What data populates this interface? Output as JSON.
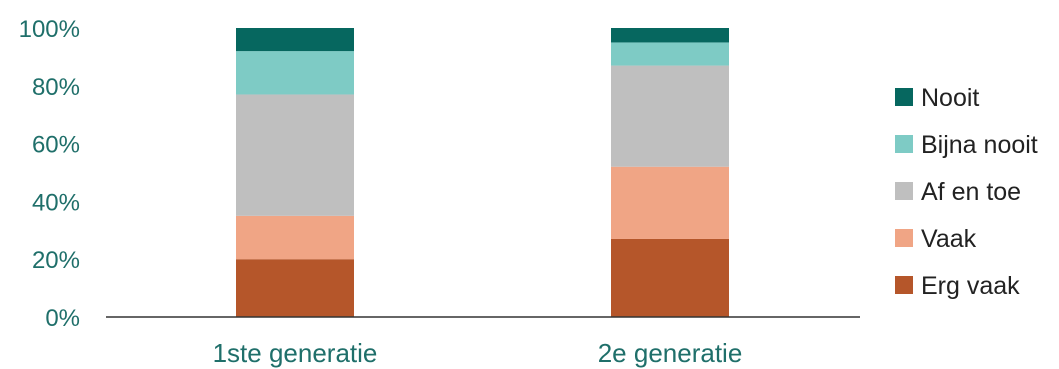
{
  "chart_data": {
    "type": "bar",
    "stacked": true,
    "categories": [
      "1ste generatie",
      "2e generatie"
    ],
    "series": [
      {
        "name": "Erg vaak",
        "values": [
          20,
          27
        ],
        "color": "#b5562a"
      },
      {
        "name": "Vaak",
        "values": [
          15,
          25
        ],
        "color": "#f0a585"
      },
      {
        "name": "Af en toe",
        "values": [
          42,
          35
        ],
        "color": "#bfbfbf"
      },
      {
        "name": "Bijna nooit",
        "values": [
          15,
          8
        ],
        "color": "#7ecbc5"
      },
      {
        "name": "Nooit",
        "values": [
          8,
          5
        ],
        "color": "#06675f"
      }
    ],
    "yticks": [
      "0%",
      "20%",
      "40%",
      "60%",
      "80%",
      "100%"
    ],
    "ylim": [
      0,
      100
    ],
    "title": "",
    "xlabel": "",
    "ylabel": "",
    "grid": false,
    "legend": "right"
  }
}
